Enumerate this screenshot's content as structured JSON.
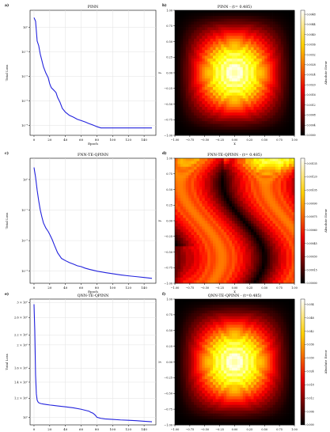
{
  "chart_data": [
    {
      "panel": "a)",
      "type": "line",
      "title": "PINN",
      "xlabel": "Epoch",
      "ylabel": "Total Loss",
      "yscale": "log",
      "xlim": [
        -5,
        155
      ],
      "ylim": [
        4e-05,
        5
      ],
      "x_ticks": [
        "0",
        "20",
        "40",
        "60",
        "80",
        "100",
        "120",
        "140"
      ],
      "y_ticks": [
        "10⁰",
        "10⁻¹",
        "10⁻²",
        "10⁻³",
        "10⁻⁴"
      ],
      "grid": true,
      "line_color": "#2222dd",
      "x": [
        0,
        2,
        4,
        6,
        8,
        10,
        12,
        15,
        18,
        20,
        22,
        25,
        28,
        30,
        33,
        36,
        40,
        45,
        50,
        55,
        60,
        65,
        70,
        75,
        80,
        85,
        90,
        100,
        120,
        150
      ],
      "y": [
        2.5,
        1.8,
        0.28,
        0.18,
        0.08,
        0.045,
        0.025,
        0.014,
        0.009,
        0.005,
        0.0035,
        0.0028,
        0.0022,
        0.0014,
        0.0009,
        0.0005,
        0.00035,
        0.00026,
        0.00022,
        0.00018,
        0.00016,
        0.00014,
        0.00012,
        0.000105,
        9e-05,
        8e-05,
        8e-05,
        8e-05,
        8e-05,
        8e-05
      ]
    },
    {
      "panel": "b)",
      "type": "heatmap",
      "title": "PINN - (t= 0.485)",
      "xlabel": "x",
      "ylabel": "y",
      "xlim": [
        -1.0,
        1.0
      ],
      "ylim": [
        -1.0,
        1.0
      ],
      "x_ticks": [
        "−1.00",
        "−0.75",
        "−0.50",
        "−0.25",
        "0.00",
        "0.25",
        "0.50",
        "0.75",
        "1.00"
      ],
      "y_ticks": [
        "1.00",
        "0.75",
        "0.50",
        "0.25",
        "0.00",
        "−0.25",
        "−0.50",
        "−0.75",
        "−1.00"
      ],
      "colorbar_label": "Absolute Error",
      "colorbar_ticks": [
        "0.0000",
        "0.0004",
        "0.0008",
        "0.0012",
        "0.0016",
        "0.0020",
        "0.0024",
        "0.0028",
        "0.0032",
        "0.0036",
        "0.0040",
        "0.0044",
        "0.0048"
      ],
      "colormap": "hot",
      "pattern": "central-peak"
    },
    {
      "panel": "c)",
      "type": "line",
      "title": "FNN-TE-QPINN",
      "xlabel": "Epoch",
      "ylabel": "Total Loss",
      "yscale": "log",
      "xlim": [
        -5,
        155
      ],
      "ylim": [
        0.0004,
        5
      ],
      "x_ticks": [
        "0",
        "20",
        "40",
        "60",
        "80",
        "100",
        "120",
        "140"
      ],
      "y_ticks": [
        "10⁰",
        "10⁻¹",
        "10⁻²",
        "10⁻³"
      ],
      "grid": true,
      "line_color": "#2222dd",
      "x": [
        0,
        2,
        4,
        6,
        8,
        10,
        12,
        15,
        18,
        20,
        23,
        26,
        30,
        35,
        40,
        45,
        50,
        55,
        60,
        65,
        70,
        80,
        90,
        100,
        110,
        120,
        130,
        140,
        150
      ],
      "y": [
        2.5,
        1.2,
        0.45,
        0.2,
        0.1,
        0.06,
        0.038,
        0.026,
        0.02,
        0.016,
        0.011,
        0.007,
        0.004,
        0.0026,
        0.0022,
        0.0019,
        0.0017,
        0.0015,
        0.0014,
        0.00125,
        0.00115,
        0.001,
        0.0009,
        0.00082,
        0.00075,
        0.0007,
        0.00066,
        0.00062,
        0.00058
      ]
    },
    {
      "panel": "d)",
      "type": "heatmap",
      "title": "FNN-TE-QPINN - (t= 0.485)",
      "xlabel": "x",
      "ylabel": "y",
      "xlim": [
        -1.0,
        1.0
      ],
      "ylim": [
        -1.0,
        1.0
      ],
      "x_ticks": [
        "−1.00",
        "−0.75",
        "−0.50",
        "−0.25",
        "0.00",
        "0.25",
        "0.50",
        "0.75",
        "1.00"
      ],
      "y_ticks": [
        "1.00",
        "0.75",
        "0.50",
        "0.25",
        "0.00",
        "−0.25",
        "−0.50",
        "−0.75",
        "−1.00"
      ],
      "colorbar_label": "Absolute Error",
      "colorbar_ticks": [
        "0.00000",
        "0.00015",
        "0.00030",
        "0.00045",
        "0.00060",
        "0.00075",
        "0.00090",
        "0.00105",
        "0.00120",
        "0.00135"
      ],
      "colormap": "hot",
      "pattern": "wavy-bands"
    },
    {
      "panel": "e)",
      "type": "line",
      "title": "QNN-TE-QPINN",
      "xlabel": "Epoch",
      "ylabel": "Total Loss",
      "yscale": "log",
      "xlim": [
        -5,
        155
      ],
      "ylim": [
        0.93,
        3.1
      ],
      "x_ticks": [
        "0",
        "20",
        "40",
        "60",
        "80",
        "100",
        "120",
        "140"
      ],
      "y_ticks": [
        "3 × 10⁰",
        "2.6 × 10⁰",
        "2.2 × 10⁰",
        "2 × 10⁰",
        "1.6 × 10⁰",
        "1.4 × 10⁰",
        "1.2 × 10⁰",
        "10⁰"
      ],
      "grid": true,
      "line_color": "#2222dd",
      "x": [
        0,
        1,
        2,
        3,
        4,
        5,
        6,
        7,
        9,
        12,
        16,
        20,
        25,
        30,
        40,
        50,
        60,
        65,
        70,
        72,
        75,
        78,
        80,
        85,
        90,
        100,
        110,
        120,
        130,
        140,
        150
      ],
      "y": [
        2.95,
        2.3,
        1.5,
        1.25,
        1.18,
        1.16,
        1.15,
        1.145,
        1.14,
        1.135,
        1.13,
        1.125,
        1.12,
        1.115,
        1.105,
        1.095,
        1.08,
        1.07,
        1.06,
        1.05,
        1.04,
        1.02,
        1.0,
        0.99,
        0.985,
        0.98,
        0.975,
        0.972,
        0.968,
        0.963,
        0.958
      ]
    },
    {
      "panel": "f)",
      "type": "heatmap",
      "title": "QNN-TE-QPINN - (t=0.485)",
      "xlabel": "x",
      "ylabel": "y",
      "xlim": [
        -1.0,
        1.0
      ],
      "ylim": [
        -1.0,
        1.0
      ],
      "x_ticks": [
        "−1.00",
        "−0.75",
        "−0.50",
        "−0.25",
        "0.00",
        "0.25",
        "0.50",
        "0.75",
        "1.00"
      ],
      "y_ticks": [
        "1.00",
        "0.75",
        "0.50",
        "0.25",
        "0.00",
        "−0.25",
        "−0.50",
        "−0.75",
        "−1.00"
      ],
      "colorbar_label": "Absolute Error",
      "colorbar_ticks": [
        "0.000",
        "0.006",
        "0.012",
        "0.018",
        "0.024",
        "0.030",
        "0.036",
        "0.042",
        "0.048",
        "0.054"
      ],
      "colormap": "hot",
      "pattern": "central-peak"
    }
  ]
}
